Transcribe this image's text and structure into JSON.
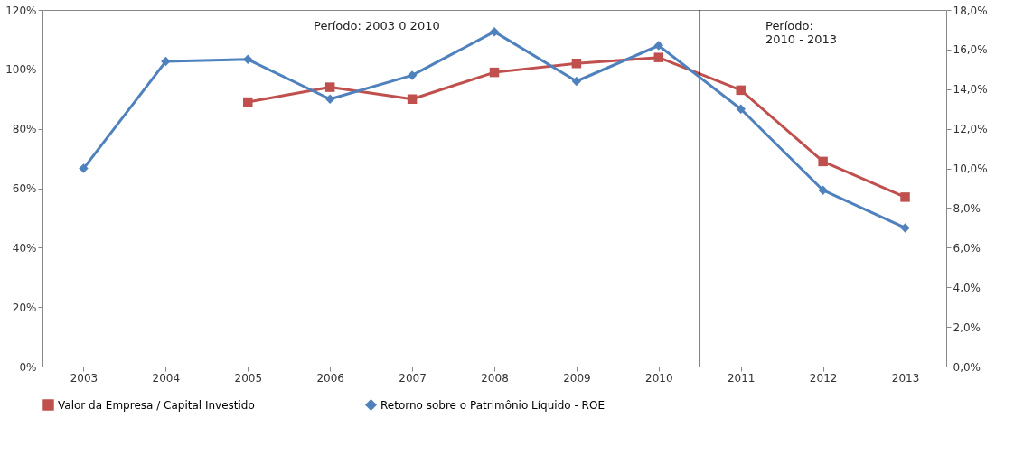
{
  "chart_data": {
    "type": "line",
    "x": [
      2003,
      2004,
      2005,
      2006,
      2007,
      2008,
      2009,
      2010,
      2011,
      2012,
      2013
    ],
    "xlim": [
      2002.5,
      2013.5
    ],
    "xticks": [
      2003,
      2004,
      2005,
      2006,
      2007,
      2008,
      2009,
      2010,
      2011,
      2012,
      2013
    ],
    "ylim": [
      0,
      120
    ],
    "yticks": [
      {
        "value": 0,
        "label": "0%"
      },
      {
        "value": 20,
        "label": "20%"
      },
      {
        "value": 40,
        "label": "40%"
      },
      {
        "value": 60,
        "label": "60%"
      },
      {
        "value": 80,
        "label": "80%"
      },
      {
        "value": 100,
        "label": "100%"
      },
      {
        "value": 120,
        "label": "120%"
      }
    ],
    "y2lim": [
      0,
      18
    ],
    "y2ticks": [
      {
        "value": 0,
        "label": "0,0%"
      },
      {
        "value": 2,
        "label": "2,0%"
      },
      {
        "value": 4,
        "label": "4,0%"
      },
      {
        "value": 6,
        "label": "6,0%"
      },
      {
        "value": 8,
        "label": "8,0%"
      },
      {
        "value": 10,
        "label": "10,0%"
      },
      {
        "value": 12,
        "label": "12,0%"
      },
      {
        "value": 14,
        "label": "14,0%"
      },
      {
        "value": 16,
        "label": "16,0%"
      },
      {
        "value": 18,
        "label": "18,0%"
      }
    ],
    "series": [
      {
        "name": "Valor da Empresa / Capital Investido",
        "color": "#c0504d",
        "marker": "square",
        "values": [
          null,
          null,
          89,
          94,
          90,
          99,
          102,
          104,
          93,
          69,
          57
        ]
      },
      {
        "name": "Retorno sobre o Patrimônio Líquido - ROE",
        "color": "#4f81bd",
        "marker": "diamond",
        "axis": "y2",
        "values": [
          10.0,
          15.4,
          15.5,
          13.5,
          14.7,
          16.9,
          14.4,
          16.2,
          13.0,
          8.9,
          7.0
        ]
      }
    ],
    "ref_lines": [
      {
        "axis": "x",
        "value": 2010.5,
        "color": "#000000"
      }
    ],
    "annotations": [
      "Período: 2003 0 2010",
      "Período:\n2010 - 2013"
    ],
    "grid": false,
    "legend": "bottom",
    "line_style": "solid"
  }
}
